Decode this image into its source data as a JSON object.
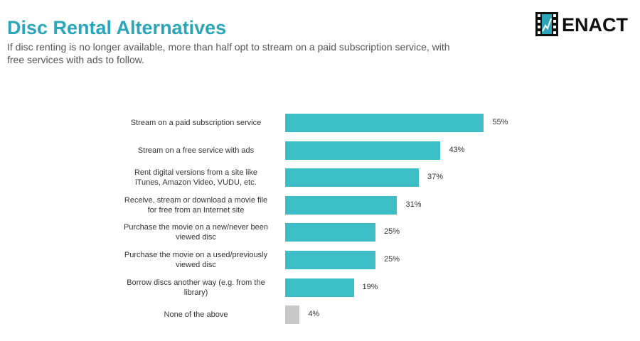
{
  "chart_data": {
    "type": "bar",
    "orientation": "horizontal",
    "title": "Disc Rental Alternatives",
    "subtitle": "If disc renting is no longer available, more than half opt to stream on a paid subscription service, with free services with ads to follow.",
    "brand": "ENACT",
    "categories": [
      "Stream on a paid subscription service",
      "Stream on a free service with ads",
      "Rent digital versions from a site like iTunes, Amazon Video, VUDU, etc.",
      "Receive, stream or download a movie file for free from an Internet site",
      "Purchase the movie on a new/never been viewed disc",
      "Purchase the movie on a used/previously viewed disc",
      "Borrow discs another way (e.g. from the library)",
      "None of the above"
    ],
    "values": [
      55,
      43,
      37,
      31,
      25,
      25,
      19,
      4
    ],
    "value_labels": [
      "55%",
      "43%",
      "37%",
      "31%",
      "25%",
      "25%",
      "19%",
      "4%"
    ],
    "colors": [
      "#3dbdc6",
      "#3dbdc6",
      "#3dbdc6",
      "#3dbdc6",
      "#3dbdc6",
      "#3dbdc6",
      "#3dbdc6",
      "#c8c8c8"
    ]
  }
}
